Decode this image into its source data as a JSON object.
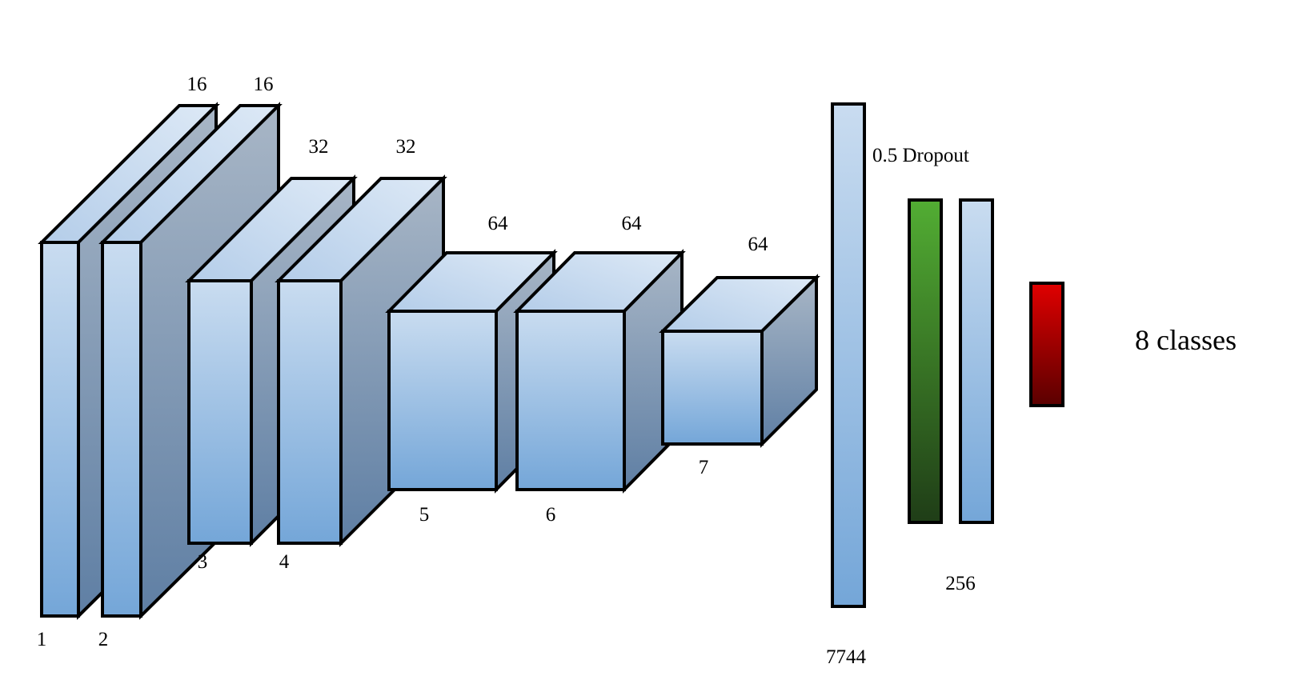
{
  "layers": [
    {
      "id": "layer-1",
      "index": "1",
      "channels": "16"
    },
    {
      "id": "layer-2",
      "index": "2",
      "channels": "16"
    },
    {
      "id": "layer-3",
      "index": "3",
      "channels": "32"
    },
    {
      "id": "layer-4",
      "index": "4",
      "channels": "32"
    },
    {
      "id": "layer-5",
      "index": "5",
      "channels": "64"
    },
    {
      "id": "layer-6",
      "index": "6",
      "channels": "64"
    },
    {
      "id": "layer-7",
      "index": "7",
      "channels": "64"
    }
  ],
  "flatten": {
    "units": "7744",
    "dropout_label": "0.5 Dropout"
  },
  "dense": {
    "units": "256"
  },
  "output": {
    "label": "8 classes"
  },
  "colors": {
    "block_front_top": "#c9dcf0",
    "block_front_bottom": "#74a6d8",
    "block_top_light": "#dde9f6",
    "block_top_dark": "#b4cde9",
    "block_side_top": "#a8b6c6",
    "block_side_bottom": "#5f7fa4",
    "dense_green_top": "#52ad33",
    "dense_green_bottom": "#1f3d17",
    "output_red_top": "#e00000",
    "output_red_bottom": "#5a0000",
    "outline": "#000000"
  }
}
